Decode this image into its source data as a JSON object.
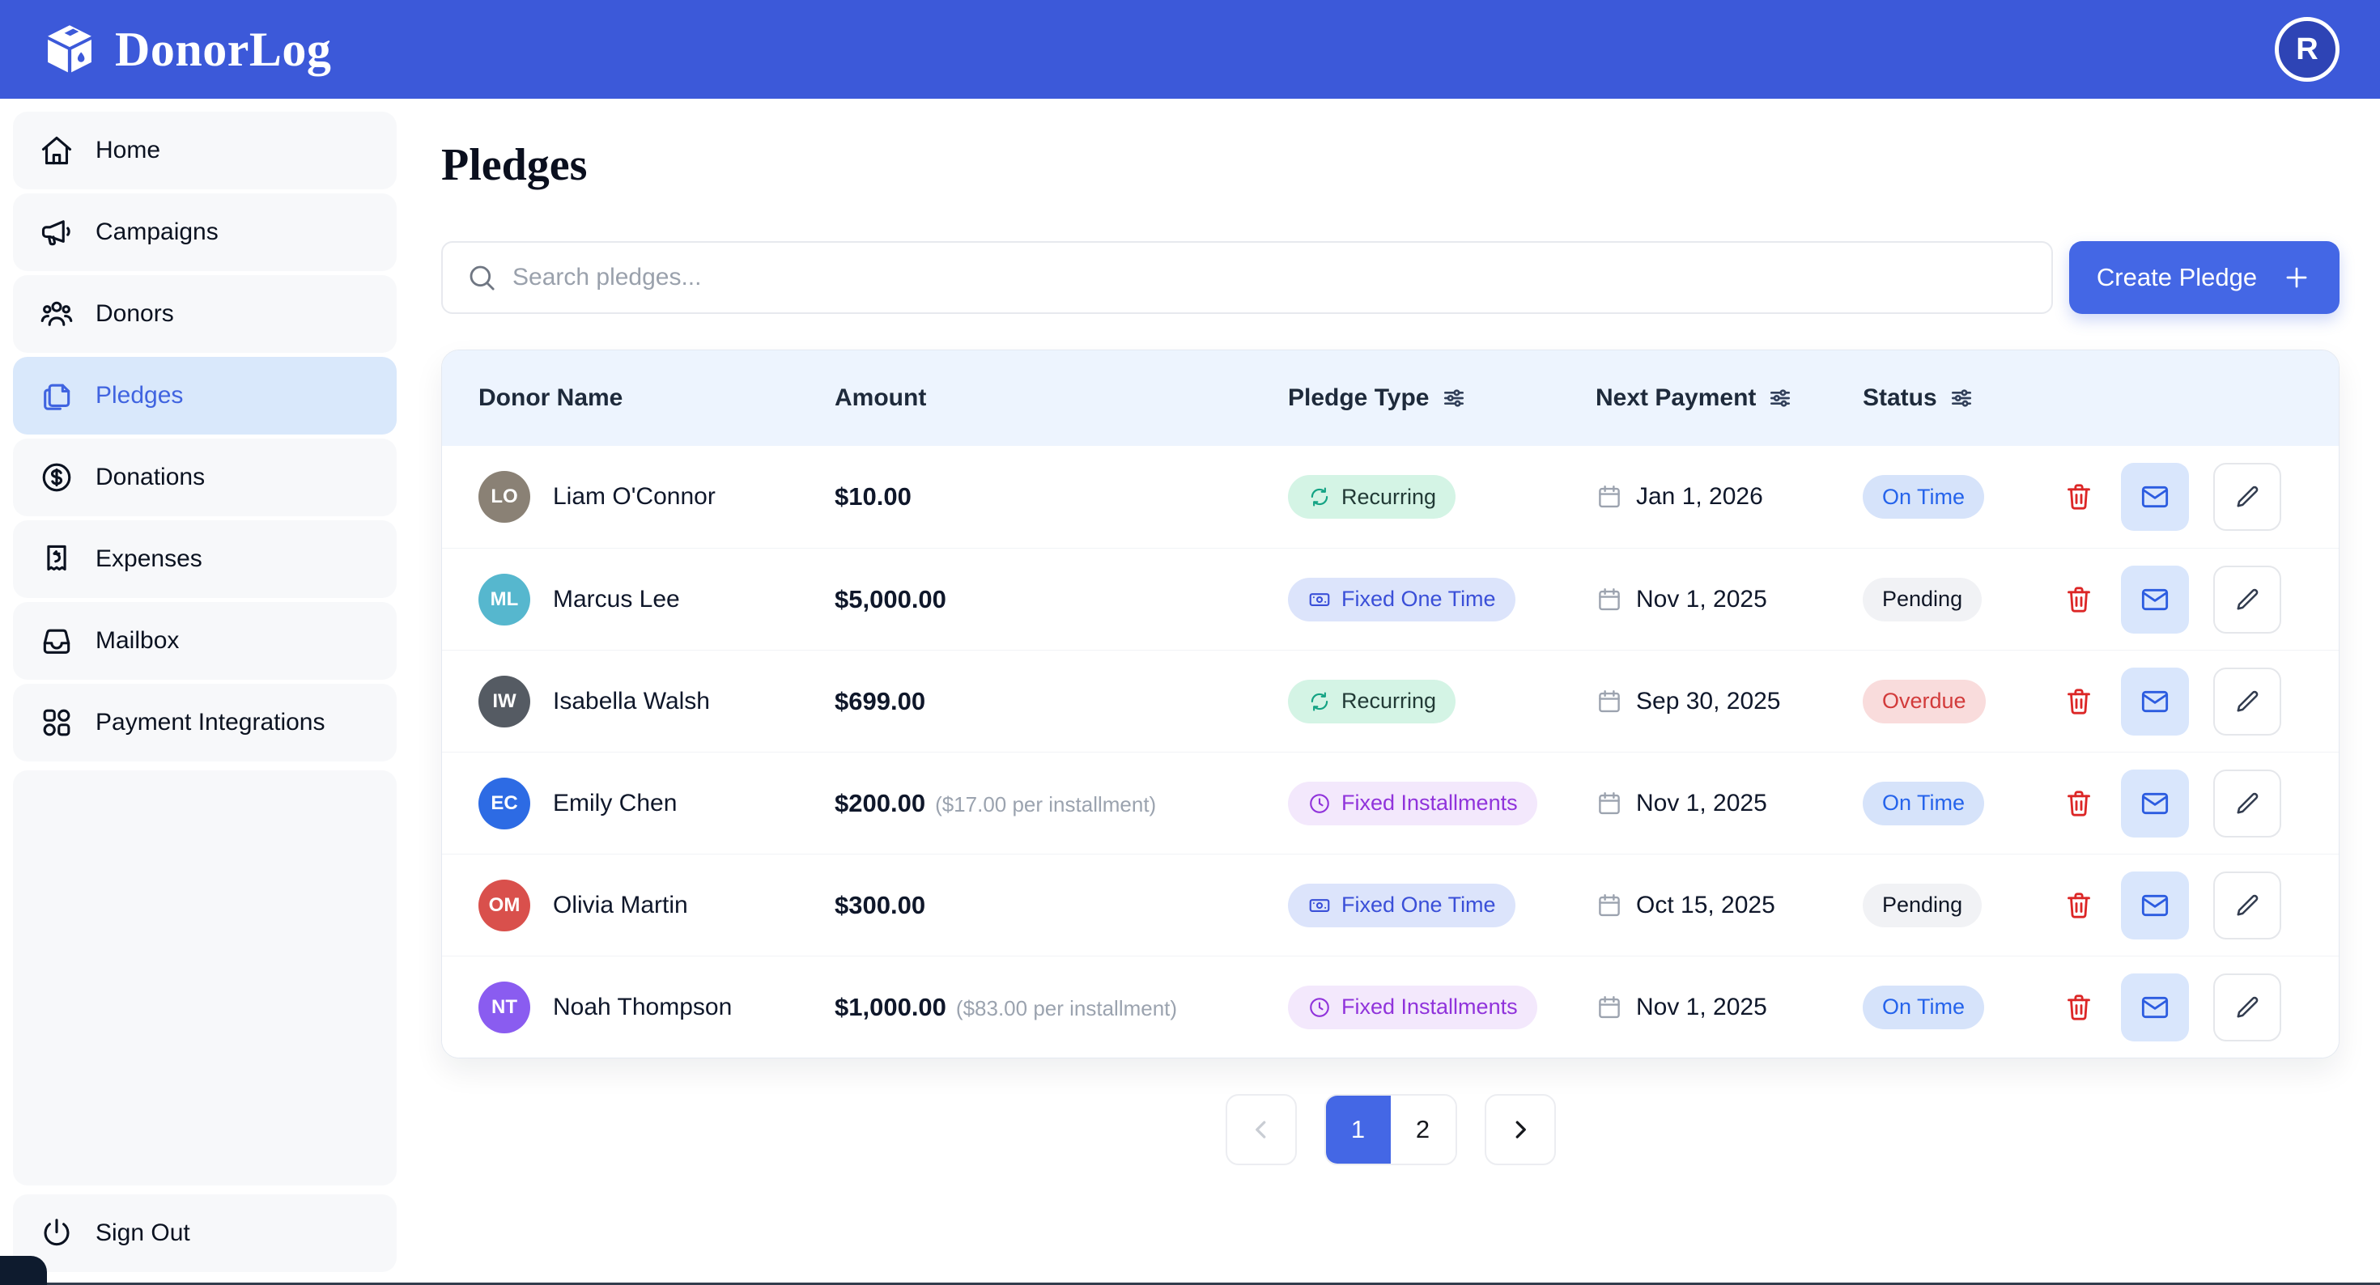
{
  "brand": {
    "app_name": "DonorLog",
    "logo_icon": "donation-box-icon"
  },
  "header": {
    "avatar_initial": "R"
  },
  "sidebar": {
    "items": [
      {
        "label": "Home",
        "icon": "home-icon",
        "active": false
      },
      {
        "label": "Campaigns",
        "icon": "megaphone-icon",
        "active": false
      },
      {
        "label": "Donors",
        "icon": "donors-icon",
        "active": false
      },
      {
        "label": "Pledges",
        "icon": "pledges-icon",
        "active": true
      },
      {
        "label": "Donations",
        "icon": "dollar-circle-icon",
        "active": false
      },
      {
        "label": "Expenses",
        "icon": "receipt-icon",
        "active": false
      },
      {
        "label": "Mailbox",
        "icon": "inbox-icon",
        "active": false
      },
      {
        "label": "Payment Integrations",
        "icon": "grid-icon",
        "active": false
      }
    ],
    "sign_out": {
      "label": "Sign Out",
      "icon": "power-icon"
    }
  },
  "page": {
    "title": "Pledges",
    "search": {
      "placeholder": "Search pledges...",
      "icon": "search-icon"
    },
    "create_button": {
      "label": "Create Pledge",
      "icon": "plus-icon"
    }
  },
  "table": {
    "columns": [
      {
        "label": "Donor Name",
        "filterable": false
      },
      {
        "label": "Amount",
        "filterable": false
      },
      {
        "label": "Pledge Type",
        "filterable": true
      },
      {
        "label": "Next Payment",
        "filterable": true
      },
      {
        "label": "Status",
        "filterable": true
      }
    ],
    "rows": [
      {
        "initials": "LO",
        "avatar_color": "#8A8175",
        "name": "Liam O'Connor",
        "amount": "$10.00",
        "installment_note": "",
        "pledge_type": "Recurring",
        "next_payment": "Jan 1, 2026",
        "status": "On Time"
      },
      {
        "initials": "ML",
        "avatar_color": "#56B7CE",
        "name": "Marcus Lee",
        "amount": "$5,000.00",
        "installment_note": "",
        "pledge_type": "Fixed One Time",
        "next_payment": "Nov 1, 2025",
        "status": "Pending"
      },
      {
        "initials": "IW",
        "avatar_color": "#555B63",
        "name": "Isabella Walsh",
        "amount": "$699.00",
        "installment_note": "",
        "pledge_type": "Recurring",
        "next_payment": "Sep 30, 2025",
        "status": "Overdue"
      },
      {
        "initials": "EC",
        "avatar_color": "#2D6BE4",
        "name": "Emily Chen",
        "amount": "$200.00",
        "installment_note": "($17.00 per installment)",
        "pledge_type": "Fixed Installments",
        "next_payment": "Nov 1, 2025",
        "status": "On Time"
      },
      {
        "initials": "OM",
        "avatar_color": "#D9504C",
        "name": "Olivia Martin",
        "amount": "$300.00",
        "installment_note": "",
        "pledge_type": "Fixed One Time",
        "next_payment": "Oct 15, 2025",
        "status": "Pending"
      },
      {
        "initials": "NT",
        "avatar_color": "#8A5CF0",
        "name": "Noah Thompson",
        "amount": "$1,000.00",
        "installment_note": "($83.00 per installment)",
        "pledge_type": "Fixed Installments",
        "next_payment": "Nov 1, 2025",
        "status": "On Time"
      }
    ],
    "row_actions": [
      {
        "name": "delete",
        "icon": "trash-icon"
      },
      {
        "name": "email",
        "icon": "envelope-icon"
      },
      {
        "name": "edit",
        "icon": "pencil-icon"
      }
    ],
    "pledge_type_styles": {
      "Recurring": {
        "bg": "#D4F4E5",
        "text": "#223A36",
        "icon": "refresh-icon",
        "icon_color": "#14A384"
      },
      "Fixed One Time": {
        "bg": "#DCE4FB",
        "text": "#3A4FD8",
        "icon": "banknote-icon",
        "icon_color": "#3A4FD8"
      },
      "Fixed Installments": {
        "bg": "#F3E8FC",
        "text": "#9033DB",
        "icon": "clock-icon",
        "icon_color": "#9033DB"
      }
    },
    "status_styles": {
      "On Time": {
        "bg": "#D6E3FA",
        "text": "#2563EB"
      },
      "Pending": {
        "bg": "#F1F2F5",
        "text": "#111827"
      },
      "Overdue": {
        "bg": "#F9DCDC",
        "text": "#D23B3B"
      }
    },
    "date_icon": "calendar-icon"
  },
  "pagination": {
    "pages": [
      "1",
      "2"
    ],
    "active_page": "1",
    "prev_icon": "chevron-left-icon",
    "next_icon": "chevron-right-icon"
  },
  "colors": {
    "header_bg": "#3C59D9",
    "accent": "#4467E5",
    "active_nav_bg": "#D9E8FB",
    "active_nav_text": "#4064E0",
    "table_header_bg": "#EDF4FE",
    "delete_icon": "#DC2626",
    "mail_button_bg": "#D9E6FC",
    "mail_icon": "#2C5CE0"
  }
}
